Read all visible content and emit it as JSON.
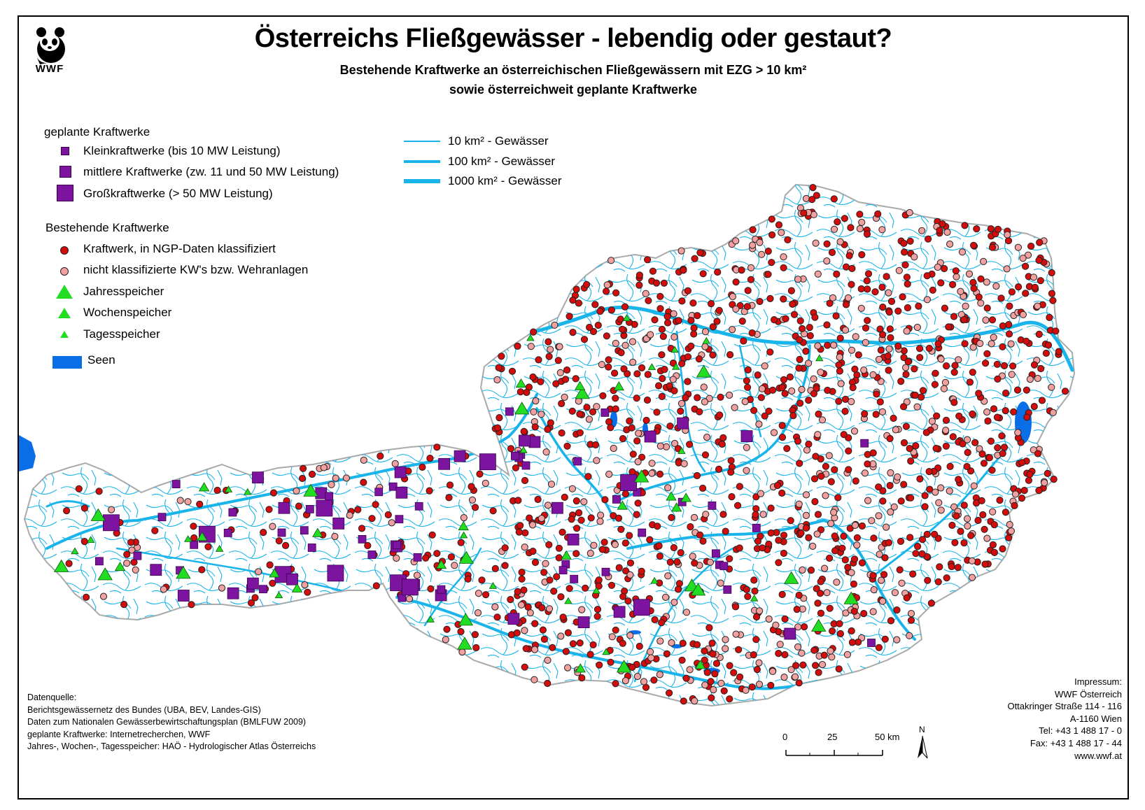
{
  "title": "Österreichs Fließgewässer - lebendig oder gestaut?",
  "subtitle_line1": "Bestehende Kraftwerke an österreichischen Fließgewässern mit EZG > 10 km²",
  "subtitle_line2": "sowie österreichweit geplante Kraftwerke",
  "logo_text": "WWF",
  "legend": {
    "planned_heading": "geplante Kraftwerke",
    "planned_items": [
      "Kleinkraftwerke (bis 10 MW Leistung)",
      "mittlere Kraftwerke (zw. 11 und 50 MW Leistung)",
      "Großkraftwerke (> 50 MW Leistung)"
    ],
    "existing_heading": "Bestehende Kraftwerke",
    "existing_items": [
      "Kraftwerk, in NGP-Daten klassifiziert",
      "nicht klassifizierte KW's bzw. Wehranlagen",
      "Jahresspeicher",
      "Wochenspeicher",
      "Tagesspeicher"
    ],
    "lakes_label": "Seen",
    "rivers": [
      "10 km² - Gewässer",
      "100 km² - Gewässer",
      "1000 km² - Gewässer"
    ]
  },
  "colors": {
    "planned": "#7d14a0",
    "classified_plant": "#d40c0c",
    "unclassified_plant": "#f2a0a0",
    "reservoir": "#22dd22",
    "river": "#19b4ea",
    "lake": "#0a6ee6",
    "country_outline": "#aaaaaa"
  },
  "source": [
    "Datenquelle:",
    "Berichtsgewässernetz des Bundes (UBA, BEV, Landes-GIS)",
    "Daten zum Nationalen Gewässerbewirtschaftungsplan (BMLFUW 2009)",
    "geplante Kraftwerke: Internetrecherchen, WWF",
    "Jahres-, Wochen-, Tagesspeicher: HAÖ - Hydrologischer Atlas Österreichs"
  ],
  "impressum": [
    "Impressum:",
    "WWF Österreich",
    "Ottakringer Straße 114 - 116",
    "A-1160 Wien",
    "Tel: +43 1 488 17 - 0",
    "Fax: +43 1 488 17 - 44",
    "www.wwf.at"
  ],
  "scale": {
    "labels": [
      "0",
      "25",
      "50 km"
    ]
  },
  "north_label": "N"
}
